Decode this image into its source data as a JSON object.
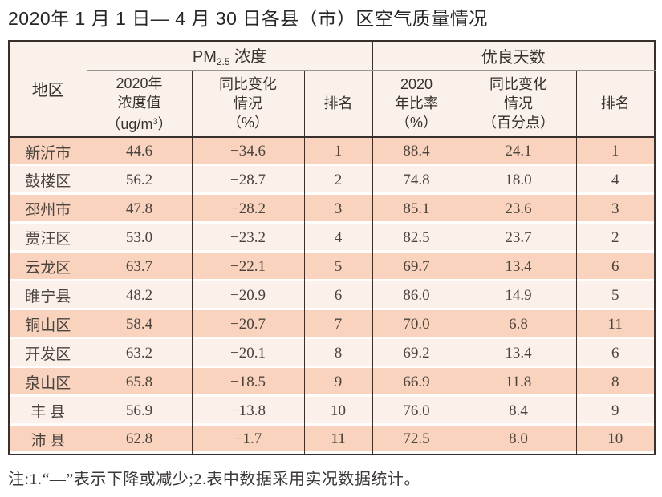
{
  "title": "2020年 1 月 1 日— 4 月 30 日各县（市）区空气质量情况",
  "note": "注:1.“—”表示下降或减少;2.表中数据采用实况数据统计。",
  "colors": {
    "row_band_odd": "#f9d3be",
    "row_band_even": "#fbf1ea",
    "header_bg": "#fbf1eb",
    "border_dark": "#37302c",
    "border_gray": "#98948f"
  },
  "chart_data": {
    "type": "table",
    "title": "2020年 1 月 1 日— 4 月 30 日各县（市）区空气质量情况",
    "column_groups": [
      {
        "pm_prefix": "PM",
        "pm_sub": "2.5",
        "pm_suffix": " 浓度",
        "span": 3
      },
      {
        "label": "优良天数",
        "span": 3
      }
    ],
    "columns": [
      {
        "label": "地区"
      },
      {
        "line1": "2020年",
        "line2": "浓度值",
        "unit_pre": "（ug/m",
        "unit_sup": "3",
        "unit_post": "）"
      },
      {
        "line1": "同比变化",
        "line2": "情况",
        "line3": "（%）"
      },
      {
        "label": "排名"
      },
      {
        "line1": "2020",
        "line2": "年比率",
        "line3": "（%）"
      },
      {
        "line1": "同比变化",
        "line2": "情况",
        "line3": "（百分点）"
      },
      {
        "label": "排名"
      }
    ],
    "column_keys": [
      "region",
      "pm2020_value_ug_m3",
      "pm_yoy_change_pct",
      "pm_rank",
      "good_days_rate_pct",
      "good_days_yoy_change_points",
      "good_days_rank"
    ],
    "rows": [
      [
        "新沂市",
        "44.6",
        "−34.6",
        "1",
        "88.4",
        "24.1",
        "1"
      ],
      [
        "鼓楼区",
        "56.2",
        "−28.7",
        "2",
        "74.8",
        "18.0",
        "4"
      ],
      [
        "邳州市",
        "47.8",
        "−28.2",
        "3",
        "85.1",
        "23.6",
        "3"
      ],
      [
        "贾汪区",
        "53.0",
        "−23.2",
        "4",
        "82.5",
        "23.7",
        "2"
      ],
      [
        "云龙区",
        "63.7",
        "−22.1",
        "5",
        "69.7",
        "13.4",
        "6"
      ],
      [
        "睢宁县",
        "48.2",
        "−20.9",
        "6",
        "86.0",
        "14.9",
        "5"
      ],
      [
        "铜山区",
        "58.4",
        "−20.7",
        "7",
        "70.0",
        "6.8",
        "11"
      ],
      [
        "开发区",
        "63.2",
        "−20.1",
        "8",
        "69.2",
        "13.4",
        "6"
      ],
      [
        "泉山区",
        "65.8",
        "−18.5",
        "9",
        "66.9",
        "11.8",
        "8"
      ],
      [
        "丰 县",
        "56.9",
        "−13.8",
        "10",
        "76.0",
        "8.4",
        "9"
      ],
      [
        "沛 县",
        "62.8",
        "−1.7",
        "11",
        "72.5",
        "8.0",
        "10"
      ]
    ]
  }
}
